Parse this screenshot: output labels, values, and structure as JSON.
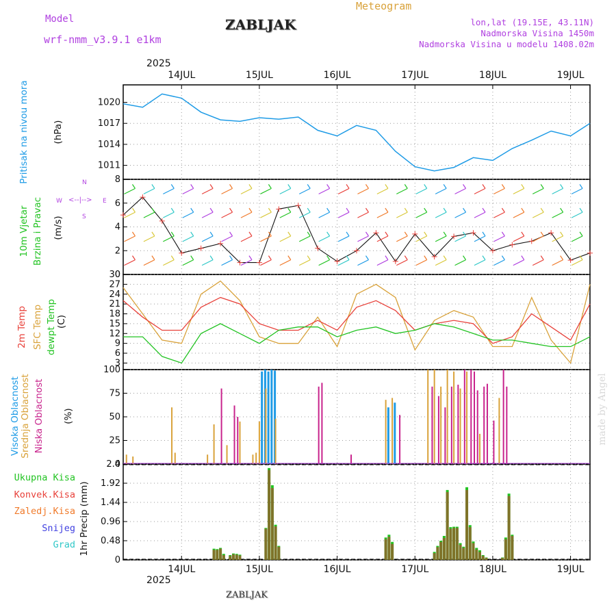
{
  "header": {
    "model_label": "Model",
    "model_name": "wrf-nmm_v3.9.1  e1km",
    "station": "ZABLJAK",
    "meteogram_label": "Meteogram",
    "lonlat": "lon,lat (19.15E, 43.11N)",
    "altitude": "Nadmorska Visina 1450m",
    "model_altitude": "Nadmorska Visina u modelu 1408.02m",
    "year_top": "2025",
    "year_bottom": "2025",
    "footer_station": "ZABLJAK",
    "watermark": "made by Angel"
  },
  "colors": {
    "pressure": "#1e9be6",
    "temp2m": "#e8413a",
    "sfc": "#d9a23a",
    "dew": "#22c322",
    "high_cloud": "#1e9be6",
    "mid_cloud": "#d9a23a",
    "low_cloud": "#c8228c",
    "precip_total": "#22c322",
    "precip_conv": "#e8413a",
    "precip_frz": "#f07a2a",
    "snow": "#4040e0",
    "grad": "#30c8c8",
    "wind_label": "#22c322",
    "wind_dir": "#b040e0"
  },
  "panels": {
    "pressure": {
      "label": "Pritisak na nivou mora",
      "unit": "(hPa)"
    },
    "wind": {
      "label_line1": "10m Vjetar",
      "label_line2": "Brzina i Pravac",
      "unit": "(m/s)",
      "compass_n": "N",
      "compass_s": "S",
      "compass_w": "W",
      "compass_e": "E"
    },
    "temperature": {
      "label_2m": "2m Temp",
      "label_sfc": "SFC Temp",
      "label_dew": "dewpt Temp",
      "unit": "(C)"
    },
    "clouds": {
      "label_high": "Visoka Oblacnost",
      "label_mid": "Srednja Oblacnost",
      "label_low": "Niska Oblacnost",
      "unit": "(%)"
    },
    "precip": {
      "unit": "1hr Precip (mm)",
      "legend": [
        "Ukupna Kisa",
        "Konvek.Kisa",
        "Zaledj.Kisa",
        "Snijeg",
        "Grad"
      ]
    }
  },
  "chart_data": [
    {
      "type": "line",
      "title": "Pritisak na nivou mora",
      "ylabel": "(hPa)",
      "ylim": [
        1009,
        1022.5
      ],
      "yticks": [
        1011,
        1014,
        1017,
        1020
      ],
      "x_hours": [
        0,
        6,
        12,
        18,
        24,
        30,
        36,
        42,
        48,
        54,
        60,
        66,
        72,
        78,
        84,
        90,
        96,
        102,
        108,
        114,
        120,
        126,
        132,
        138,
        144
      ],
      "series": [
        {
          "values": [
            1019.8,
            1019.3,
            1021.2,
            1020.6,
            1018.6,
            1017.5,
            1017.3,
            1017.8,
            1017.6,
            1017.9,
            1016.0,
            1015.2,
            1016.7,
            1016.0,
            1013.0,
            1010.8,
            1010.2,
            1010.7,
            1012.1,
            1011.7,
            1013.4,
            1014.6,
            1015.9,
            1015.2,
            1017.0
          ]
        }
      ]
    },
    {
      "type": "line",
      "title": "10m Vjetar Brzina i Pravac",
      "ylabel": "(m/s)",
      "ylim": [
        0,
        8
      ],
      "yticks": [
        0,
        2,
        4,
        6,
        8
      ],
      "x_hours": [
        0,
        6,
        12,
        18,
        24,
        30,
        36,
        42,
        48,
        54,
        60,
        66,
        72,
        78,
        84,
        90,
        96,
        102,
        108,
        114,
        120,
        126,
        132,
        138,
        144
      ],
      "series": [
        {
          "values": [
            5.0,
            6.5,
            4.5,
            1.8,
            2.2,
            2.6,
            1.0,
            1.0,
            5.5,
            5.8,
            2.2,
            1.1,
            2.0,
            3.5,
            1.1,
            3.4,
            1.5,
            3.2,
            3.5,
            2.0,
            2.5,
            2.8,
            3.5,
            1.2,
            1.8
          ]
        }
      ]
    },
    {
      "type": "line",
      "title": "2m Temp / SFC Temp / dewpt Temp",
      "ylabel": "(C)",
      "ylim": [
        1,
        30
      ],
      "yticks": [
        3,
        6,
        9,
        12,
        15,
        18,
        21,
        24,
        27,
        30
      ],
      "x_hours": [
        0,
        6,
        12,
        18,
        24,
        30,
        36,
        42,
        48,
        54,
        60,
        66,
        72,
        78,
        84,
        90,
        96,
        102,
        108,
        114,
        120,
        126,
        132,
        138,
        144
      ],
      "series": [
        {
          "name": "2m Temp",
          "values": [
            22,
            17,
            13,
            13,
            20,
            23,
            21,
            15,
            13,
            13,
            16,
            13,
            20,
            22,
            19,
            13,
            15,
            16,
            15,
            9,
            11,
            18,
            14,
            10,
            21
          ]
        },
        {
          "name": "SFC Temp",
          "values": [
            26,
            18,
            10,
            9,
            24,
            28,
            22,
            11,
            9,
            9,
            17,
            8,
            24,
            27,
            23,
            7,
            16,
            19,
            17,
            8,
            8,
            23,
            10,
            3,
            27
          ]
        },
        {
          "name": "dewpt Temp",
          "values": [
            11,
            11,
            5,
            3,
            12,
            15,
            12,
            9,
            13,
            14,
            14,
            11,
            13,
            14,
            12,
            13,
            15,
            14,
            12,
            10,
            10,
            9,
            8,
            8,
            11
          ]
        }
      ]
    },
    {
      "type": "bar",
      "title": "Visoka / Srednja / Niska Oblacnost",
      "ylabel": "(%)",
      "ylim": [
        0,
        100
      ],
      "yticks": [
        0,
        25,
        50,
        75,
        100
      ],
      "series": [
        {
          "name": "Visoka Oblacnost",
          "points": [
            [
              43,
              98
            ],
            [
              44,
              100
            ],
            [
              45,
              98
            ],
            [
              46,
              100
            ],
            [
              47,
              99
            ],
            [
              82,
              60
            ],
            [
              84,
              65
            ]
          ]
        },
        {
          "name": "Srednja Oblacnost",
          "points": [
            [
              1,
              10
            ],
            [
              3,
              8
            ],
            [
              15,
              60
            ],
            [
              16,
              12
            ],
            [
              26,
              10
            ],
            [
              28,
              42
            ],
            [
              32,
              20
            ],
            [
              36,
              45
            ],
            [
              40,
              10
            ],
            [
              41,
              12
            ],
            [
              42,
              45
            ],
            [
              44,
              80
            ],
            [
              47,
              48
            ],
            [
              81,
              68
            ],
            [
              83,
              70
            ],
            [
              94,
              100
            ],
            [
              96,
              100
            ],
            [
              98,
              82
            ],
            [
              100,
              100
            ],
            [
              102,
              98
            ],
            [
              104,
              80
            ],
            [
              106,
              98
            ],
            [
              110,
              32
            ],
            [
              116,
              70
            ]
          ]
        },
        {
          "name": "Niska Oblacnost",
          "points": [
            [
              30,
              80
            ],
            [
              34,
              62
            ],
            [
              35,
              50
            ],
            [
              60,
              82
            ],
            [
              61,
              86
            ],
            [
              70,
              10
            ],
            [
              85,
              52
            ],
            [
              95,
              82
            ],
            [
              97,
              72
            ],
            [
              99,
              60
            ],
            [
              101,
              82
            ],
            [
              103,
              84
            ],
            [
              105,
              100
            ],
            [
              107,
              100
            ],
            [
              108,
              98
            ],
            [
              109,
              78
            ],
            [
              111,
              82
            ],
            [
              112,
              85
            ],
            [
              114,
              46
            ],
            [
              117,
              100
            ],
            [
              118,
              82
            ]
          ]
        }
      ]
    },
    {
      "type": "bar",
      "title": "1hr Precip",
      "ylabel": "1hr Precip (mm)",
      "ylim": [
        0,
        2.4
      ],
      "yticks": [
        0,
        0.48,
        0.96,
        1.44,
        1.92,
        2.4
      ],
      "series": [
        {
          "name": "Ukupna Kisa",
          "points": [
            [
              28,
              0.28
            ],
            [
              29,
              0.27
            ],
            [
              30,
              0.3
            ],
            [
              31,
              0.15
            ],
            [
              33,
              0.12
            ],
            [
              34,
              0.16
            ],
            [
              35,
              0.15
            ],
            [
              36,
              0.13
            ],
            [
              44,
              0.8
            ],
            [
              45,
              2.3
            ],
            [
              46,
              1.87
            ],
            [
              47,
              0.88
            ],
            [
              48,
              0.35
            ],
            [
              81,
              0.56
            ],
            [
              82,
              0.63
            ],
            [
              83,
              0.45
            ],
            [
              96,
              0.2
            ],
            [
              97,
              0.35
            ],
            [
              98,
              0.48
            ],
            [
              99,
              0.6
            ],
            [
              100,
              1.75
            ],
            [
              101,
              0.82
            ],
            [
              102,
              0.83
            ],
            [
              103,
              0.83
            ],
            [
              104,
              0.42
            ],
            [
              105,
              0.33
            ],
            [
              106,
              1.82
            ],
            [
              107,
              0.87
            ],
            [
              108,
              0.46
            ],
            [
              109,
              0.3
            ],
            [
              110,
              0.24
            ],
            [
              111,
              0.12
            ],
            [
              112,
              0.06
            ],
            [
              117,
              0.06
            ],
            [
              118,
              0.56
            ],
            [
              119,
              1.66
            ],
            [
              120,
              0.63
            ]
          ]
        },
        {
          "name": "Konvek.Kisa",
          "points": [
            [
              28,
              0.25
            ],
            [
              29,
              0.25
            ],
            [
              30,
              0.28
            ],
            [
              31,
              0.12
            ],
            [
              33,
              0.1
            ],
            [
              34,
              0.14
            ],
            [
              35,
              0.13
            ],
            [
              36,
              0.11
            ],
            [
              44,
              0.78
            ],
            [
              45,
              2.25
            ],
            [
              46,
              1.8
            ],
            [
              47,
              0.84
            ],
            [
              48,
              0.33
            ],
            [
              81,
              0.52
            ],
            [
              82,
              0.58
            ],
            [
              83,
              0.4
            ],
            [
              96,
              0.17
            ],
            [
              97,
              0.32
            ],
            [
              98,
              0.45
            ],
            [
              99,
              0.55
            ],
            [
              100,
              1.7
            ],
            [
              101,
              0.78
            ],
            [
              102,
              0.8
            ],
            [
              103,
              0.8
            ],
            [
              104,
              0.38
            ],
            [
              105,
              0.3
            ],
            [
              106,
              1.75
            ],
            [
              107,
              0.82
            ],
            [
              108,
              0.42
            ],
            [
              109,
              0.26
            ],
            [
              110,
              0.2
            ],
            [
              111,
              0.1
            ],
            [
              112,
              0.05
            ],
            [
              117,
              0.05
            ],
            [
              118,
              0.52
            ],
            [
              119,
              1.6
            ],
            [
              120,
              0.6
            ]
          ]
        }
      ]
    }
  ],
  "axis": {
    "day_labels": [
      "14JUL",
      "15JUL",
      "16JUL",
      "17JUL",
      "18JUL",
      "19JUL"
    ]
  }
}
